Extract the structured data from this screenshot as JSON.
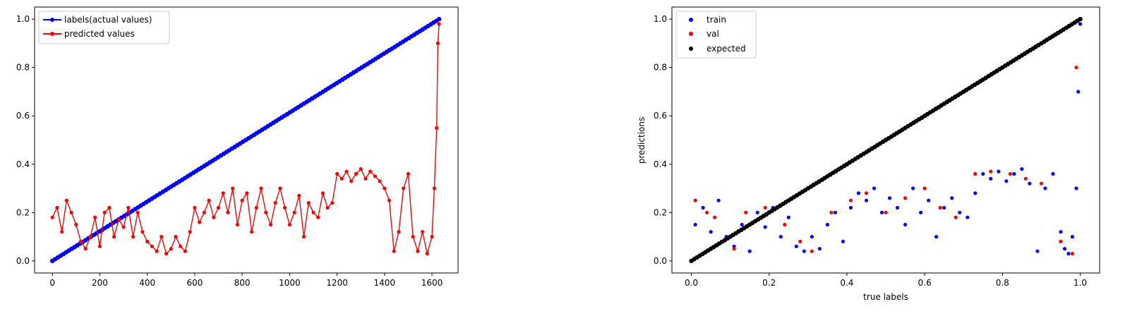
{
  "chart_data": [
    {
      "type": "line",
      "title": "",
      "xlabel": "",
      "ylabel": "",
      "xlim": [
        -75,
        1710
      ],
      "ylim": [
        -0.05,
        1.05
      ],
      "xticks": [
        0,
        200,
        400,
        600,
        800,
        1000,
        1200,
        1400,
        1600
      ],
      "xtick_labels": [
        "0",
        "200",
        "400",
        "600",
        "800",
        "1000",
        "1200",
        "1400",
        "1600"
      ],
      "yticks": [
        0.0,
        0.2,
        0.4,
        0.6,
        0.8,
        1.0
      ],
      "ytick_labels": [
        "0.0",
        "0.2",
        "0.4",
        "0.6",
        "0.8",
        "1.0"
      ],
      "legend_position": "top-left",
      "series": [
        {
          "name": "labels(actual values)",
          "color": "#0000ff",
          "marker": "dot",
          "x": [
            0,
            1630
          ],
          "y": [
            0.0,
            1.0
          ],
          "dense": true
        },
        {
          "name": "predicted values",
          "color": "#ff0000",
          "marker": "dot",
          "x": [
            0,
            20,
            40,
            60,
            80,
            100,
            120,
            140,
            160,
            180,
            200,
            220,
            240,
            260,
            280,
            300,
            320,
            340,
            360,
            380,
            400,
            420,
            440,
            460,
            480,
            500,
            520,
            540,
            560,
            580,
            600,
            620,
            640,
            660,
            680,
            700,
            720,
            740,
            760,
            780,
            800,
            820,
            840,
            860,
            880,
            900,
            920,
            940,
            960,
            980,
            1000,
            1020,
            1040,
            1060,
            1080,
            1100,
            1120,
            1140,
            1160,
            1180,
            1200,
            1220,
            1240,
            1260,
            1280,
            1300,
            1320,
            1340,
            1360,
            1380,
            1400,
            1420,
            1440,
            1460,
            1480,
            1500,
            1520,
            1540,
            1560,
            1580,
            1600,
            1610,
            1620,
            1625,
            1630
          ],
          "y": [
            0.18,
            0.22,
            0.12,
            0.25,
            0.2,
            0.15,
            0.08,
            0.05,
            0.1,
            0.18,
            0.06,
            0.2,
            0.22,
            0.1,
            0.17,
            0.14,
            0.22,
            0.1,
            0.2,
            0.12,
            0.08,
            0.06,
            0.04,
            0.1,
            0.03,
            0.05,
            0.1,
            0.06,
            0.04,
            0.12,
            0.22,
            0.16,
            0.2,
            0.25,
            0.18,
            0.22,
            0.28,
            0.2,
            0.3,
            0.15,
            0.25,
            0.28,
            0.12,
            0.22,
            0.3,
            0.2,
            0.15,
            0.24,
            0.3,
            0.22,
            0.15,
            0.2,
            0.27,
            0.1,
            0.24,
            0.2,
            0.18,
            0.28,
            0.22,
            0.24,
            0.36,
            0.34,
            0.37,
            0.33,
            0.36,
            0.38,
            0.34,
            0.37,
            0.35,
            0.33,
            0.3,
            0.25,
            0.04,
            0.12,
            0.3,
            0.36,
            0.1,
            0.04,
            0.12,
            0.03,
            0.1,
            0.3,
            0.55,
            0.9,
            0.98
          ]
        }
      ]
    },
    {
      "type": "scatter",
      "title": "",
      "xlabel": "true labels",
      "ylabel": "predictions",
      "xlim": [
        -0.05,
        1.05
      ],
      "ylim": [
        -0.05,
        1.05
      ],
      "xticks": [
        0.0,
        0.2,
        0.4,
        0.6,
        0.8,
        1.0
      ],
      "xtick_labels": [
        "0.0",
        "0.2",
        "0.4",
        "0.6",
        "0.8",
        "1.0"
      ],
      "yticks": [
        0.0,
        0.2,
        0.4,
        0.6,
        0.8,
        1.0
      ],
      "ytick_labels": [
        "0.0",
        "0.2",
        "0.4",
        "0.6",
        "0.8",
        "1.0"
      ],
      "legend_position": "top-left",
      "series": [
        {
          "name": "train",
          "color": "#0000ff",
          "x": [
            0.01,
            0.03,
            0.05,
            0.07,
            0.09,
            0.11,
            0.13,
            0.15,
            0.17,
            0.19,
            0.21,
            0.23,
            0.25,
            0.27,
            0.29,
            0.31,
            0.33,
            0.35,
            0.37,
            0.39,
            0.41,
            0.43,
            0.45,
            0.47,
            0.49,
            0.51,
            0.53,
            0.55,
            0.57,
            0.59,
            0.61,
            0.63,
            0.65,
            0.67,
            0.69,
            0.71,
            0.73,
            0.75,
            0.77,
            0.79,
            0.81,
            0.83,
            0.85,
            0.87,
            0.89,
            0.91,
            0.93,
            0.95,
            0.96,
            0.97,
            0.98,
            0.99,
            0.995,
            1.0
          ],
          "y": [
            0.15,
            0.22,
            0.12,
            0.25,
            0.1,
            0.06,
            0.15,
            0.04,
            0.2,
            0.14,
            0.22,
            0.1,
            0.18,
            0.06,
            0.04,
            0.1,
            0.05,
            0.15,
            0.2,
            0.08,
            0.22,
            0.28,
            0.25,
            0.3,
            0.2,
            0.26,
            0.22,
            0.15,
            0.3,
            0.2,
            0.25,
            0.1,
            0.22,
            0.26,
            0.2,
            0.18,
            0.28,
            0.36,
            0.34,
            0.37,
            0.33,
            0.36,
            0.38,
            0.32,
            0.04,
            0.3,
            0.36,
            0.12,
            0.05,
            0.03,
            0.1,
            0.3,
            0.7,
            0.98
          ]
        },
        {
          "name": "val",
          "color": "#ff0000",
          "x": [
            0.01,
            0.04,
            0.06,
            0.11,
            0.14,
            0.19,
            0.24,
            0.28,
            0.31,
            0.36,
            0.41,
            0.45,
            0.5,
            0.55,
            0.6,
            0.64,
            0.68,
            0.73,
            0.77,
            0.82,
            0.86,
            0.9,
            0.95,
            0.98,
            0.99
          ],
          "y": [
            0.25,
            0.2,
            0.18,
            0.05,
            0.2,
            0.22,
            0.15,
            0.08,
            0.04,
            0.2,
            0.25,
            0.28,
            0.2,
            0.26,
            0.3,
            0.22,
            0.18,
            0.36,
            0.37,
            0.36,
            0.34,
            0.32,
            0.08,
            0.03,
            0.8
          ]
        },
        {
          "name": "expected",
          "color": "#000000",
          "x": [
            0.0,
            1.0
          ],
          "y": [
            0.0,
            1.0
          ],
          "dense": true
        }
      ]
    }
  ]
}
